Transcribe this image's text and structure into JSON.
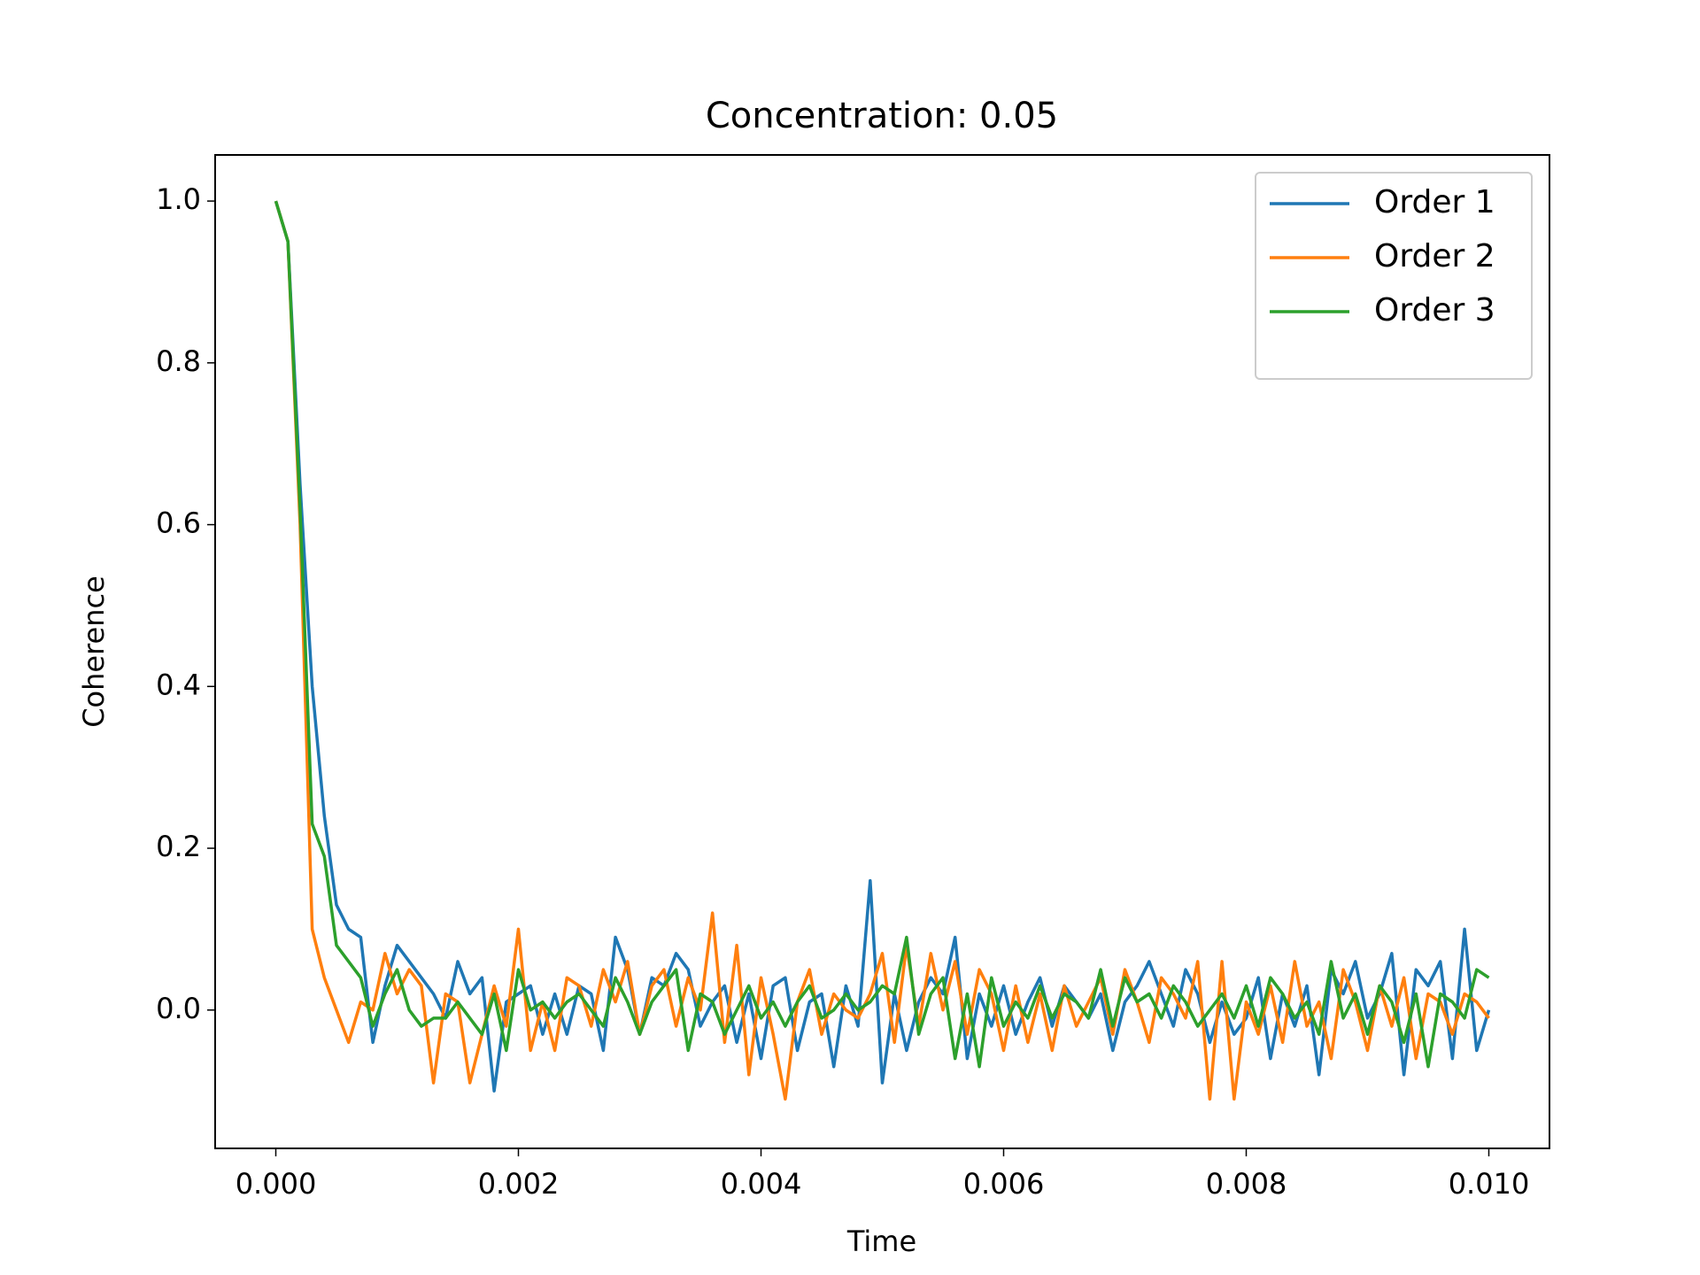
{
  "chart_data": {
    "type": "line",
    "title": "Concentration: 0.05",
    "xlabel": "Time",
    "ylabel": "Coherence",
    "x": [
      0.0,
      0.0001,
      0.0002,
      0.0003,
      0.0004,
      0.0005,
      0.0006,
      0.0007,
      0.0008,
      0.0009,
      0.001,
      0.0011,
      0.0012,
      0.0013,
      0.0014,
      0.0015,
      0.0016,
      0.0017,
      0.0018,
      0.0019,
      0.002,
      0.0021,
      0.0022,
      0.0023,
      0.0024,
      0.0025,
      0.0026,
      0.0027,
      0.0028,
      0.0029,
      0.003,
      0.0031,
      0.0032,
      0.0033,
      0.0034,
      0.0035,
      0.0036,
      0.0037,
      0.0038,
      0.0039,
      0.004,
      0.0041,
      0.0042,
      0.0043,
      0.0044,
      0.0045,
      0.0046,
      0.0047,
      0.0048,
      0.0049,
      0.005,
      0.0051,
      0.0052,
      0.0053,
      0.0054,
      0.0055,
      0.0056,
      0.0057,
      0.0058,
      0.0059,
      0.006,
      0.0061,
      0.0062,
      0.0063,
      0.0064,
      0.0065,
      0.0066,
      0.0067,
      0.0068,
      0.0069,
      0.007,
      0.0071,
      0.0072,
      0.0073,
      0.0074,
      0.0075,
      0.0076,
      0.0077,
      0.0078,
      0.0079,
      0.008,
      0.0081,
      0.0082,
      0.0083,
      0.0084,
      0.0085,
      0.0086,
      0.0087,
      0.0088,
      0.0089,
      0.009,
      0.0091,
      0.0092,
      0.0093,
      0.0094,
      0.0095,
      0.0096,
      0.0097,
      0.0098,
      0.0099,
      0.01
    ],
    "series": [
      {
        "name": "Order 1",
        "color": "#1f77b4",
        "values": [
          1.0,
          0.95,
          0.65,
          0.4,
          0.24,
          0.13,
          0.1,
          0.09,
          -0.04,
          0.03,
          0.08,
          0.06,
          0.04,
          0.02,
          -0.01,
          0.06,
          0.02,
          0.04,
          -0.1,
          0.01,
          0.02,
          0.03,
          -0.03,
          0.02,
          -0.03,
          0.03,
          0.02,
          -0.05,
          0.09,
          0.05,
          -0.03,
          0.04,
          0.03,
          0.07,
          0.05,
          -0.02,
          0.01,
          0.03,
          -0.04,
          0.02,
          -0.06,
          0.03,
          0.04,
          -0.05,
          0.01,
          0.02,
          -0.07,
          0.03,
          -0.02,
          0.16,
          -0.09,
          0.02,
          -0.05,
          0.01,
          0.04,
          0.02,
          0.09,
          -0.06,
          0.02,
          -0.02,
          0.03,
          -0.03,
          0.01,
          0.04,
          -0.02,
          0.03,
          0.01,
          -0.01,
          0.02,
          -0.05,
          0.01,
          0.03,
          0.06,
          0.02,
          -0.02,
          0.05,
          0.02,
          -0.04,
          0.01,
          -0.03,
          -0.01,
          0.04,
          -0.06,
          0.02,
          -0.02,
          0.03,
          -0.08,
          0.05,
          0.02,
          0.06,
          -0.01,
          0.02,
          0.07,
          -0.08,
          0.05,
          0.03,
          0.06,
          -0.06,
          0.1,
          -0.05,
          0.0
        ]
      },
      {
        "name": "Order 2",
        "color": "#ff7f0e",
        "values": [
          1.0,
          0.95,
          0.6,
          0.1,
          0.04,
          0.0,
          -0.04,
          0.01,
          0.0,
          0.07,
          0.02,
          0.05,
          0.03,
          -0.09,
          0.02,
          0.01,
          -0.09,
          -0.03,
          0.03,
          -0.02,
          0.1,
          -0.05,
          0.01,
          -0.05,
          0.04,
          0.03,
          -0.02,
          0.05,
          0.01,
          0.06,
          -0.03,
          0.03,
          0.05,
          -0.02,
          0.04,
          0.0,
          0.12,
          -0.04,
          0.08,
          -0.08,
          0.04,
          -0.03,
          -0.11,
          0.01,
          0.05,
          -0.03,
          0.02,
          0.0,
          -0.01,
          0.02,
          0.07,
          -0.04,
          0.08,
          -0.02,
          0.07,
          0.0,
          0.06,
          -0.03,
          0.05,
          0.02,
          -0.05,
          0.03,
          -0.04,
          0.02,
          -0.05,
          0.03,
          -0.02,
          0.01,
          0.04,
          -0.03,
          0.05,
          0.01,
          -0.04,
          0.04,
          0.02,
          -0.01,
          0.06,
          -0.11,
          0.06,
          -0.11,
          0.01,
          -0.03,
          0.03,
          -0.04,
          0.06,
          -0.02,
          0.01,
          -0.06,
          0.05,
          0.01,
          -0.05,
          0.03,
          -0.02,
          0.04,
          -0.06,
          0.02,
          0.01,
          -0.03,
          0.02,
          0.01,
          -0.01
        ]
      },
      {
        "name": "Order 3",
        "color": "#2ca02c",
        "values": [
          1.0,
          0.95,
          0.62,
          0.23,
          0.19,
          0.08,
          0.06,
          0.04,
          -0.02,
          0.02,
          0.05,
          0.0,
          -0.02,
          -0.01,
          -0.01,
          0.01,
          -0.01,
          -0.03,
          0.02,
          -0.05,
          0.05,
          0.0,
          0.01,
          -0.01,
          0.01,
          0.02,
          0.0,
          -0.02,
          0.04,
          0.01,
          -0.03,
          0.01,
          0.03,
          0.05,
          -0.05,
          0.02,
          0.01,
          -0.03,
          0.0,
          0.03,
          -0.01,
          0.01,
          -0.02,
          0.01,
          0.03,
          -0.01,
          0.0,
          0.02,
          0.0,
          0.01,
          0.03,
          0.02,
          0.09,
          -0.03,
          0.02,
          0.04,
          -0.06,
          0.02,
          -0.07,
          0.04,
          -0.02,
          0.01,
          -0.01,
          0.03,
          -0.01,
          0.02,
          0.01,
          -0.01,
          0.05,
          -0.02,
          0.04,
          0.01,
          0.02,
          -0.01,
          0.03,
          0.01,
          -0.02,
          0.0,
          0.02,
          -0.01,
          0.03,
          -0.02,
          0.04,
          0.02,
          -0.01,
          0.01,
          -0.03,
          0.06,
          -0.01,
          0.02,
          -0.03,
          0.03,
          0.01,
          -0.04,
          0.02,
          -0.07,
          0.02,
          0.01,
          -0.01,
          0.05,
          0.04
        ]
      }
    ],
    "xlim": [
      -0.0005,
      0.0105
    ],
    "xticks": [
      {
        "value": 0,
        "label": "0.000"
      },
      {
        "value": 0.002,
        "label": "0.002"
      },
      {
        "value": 0.004,
        "label": "0.004"
      },
      {
        "value": 0.006,
        "label": "0.006"
      },
      {
        "value": 0.008,
        "label": "0.008"
      },
      {
        "value": 0.01,
        "label": "0.010"
      }
    ],
    "ylim": [
      -0.171,
      1.057
    ],
    "yticks": [
      {
        "value": 0,
        "label": "0.0"
      },
      0.2,
      0.4,
      0.6,
      0.8,
      {
        "value": 1,
        "label": "1.0"
      }
    ],
    "legend": "upper right"
  }
}
